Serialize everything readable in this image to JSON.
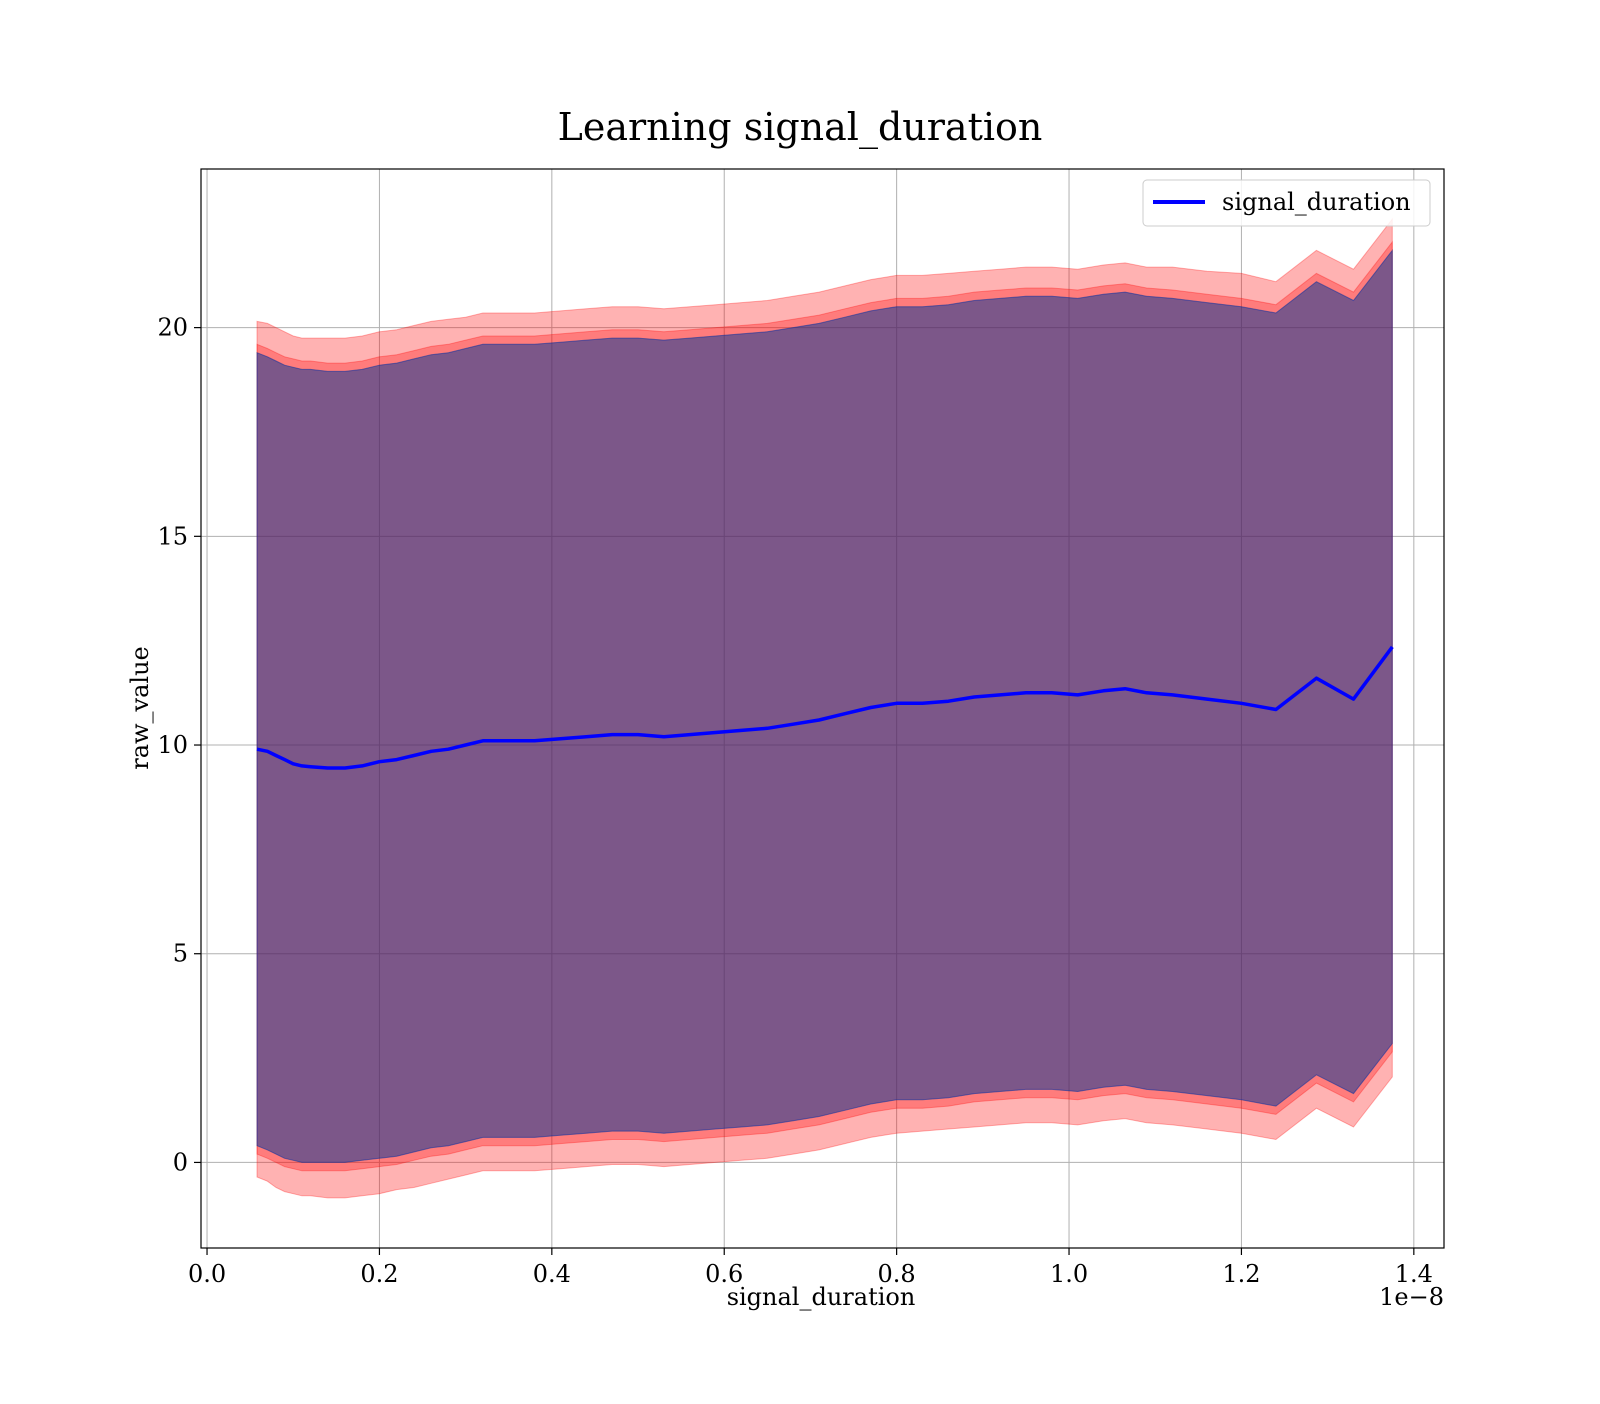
{
  "chart_data": {
    "type": "line",
    "title": "Learning signal_duration",
    "xlabel": "signal_duration",
    "ylabel": "raw_value",
    "x_offset_text": "1e−8",
    "xlim": [
      -0.007,
      1.435
    ],
    "ylim": [
      -2.05,
      23.8
    ],
    "grid": true,
    "legend": {
      "position": "top-right",
      "entries": [
        "signal_duration"
      ]
    },
    "x_ticks": [
      0.0,
      0.2,
      0.4,
      0.6,
      0.8,
      1.0,
      1.2,
      1.4
    ],
    "x_tick_labels": [
      "0.0",
      "0.2",
      "0.4",
      "0.6",
      "0.8",
      "1.0",
      "1.2",
      "1.4"
    ],
    "y_ticks": [
      0,
      5,
      10,
      15,
      20
    ],
    "y_tick_labels": [
      "0",
      "5",
      "10",
      "15",
      "20"
    ],
    "x": [
      0.058,
      0.07,
      0.08,
      0.09,
      0.1,
      0.11,
      0.12,
      0.14,
      0.16,
      0.18,
      0.2,
      0.22,
      0.24,
      0.26,
      0.28,
      0.3,
      0.32,
      0.35,
      0.38,
      0.41,
      0.44,
      0.47,
      0.5,
      0.53,
      0.56,
      0.59,
      0.62,
      0.65,
      0.68,
      0.71,
      0.74,
      0.77,
      0.8,
      0.83,
      0.86,
      0.89,
      0.92,
      0.95,
      0.98,
      1.01,
      1.04,
      1.065,
      1.09,
      1.12,
      1.16,
      1.2,
      1.24,
      1.287,
      1.33,
      1.375
    ],
    "series": [
      {
        "name": "signal_duration",
        "color": "#0000ff",
        "values": [
          9.9,
          9.85,
          9.75,
          9.65,
          9.55,
          9.5,
          9.48,
          9.45,
          9.45,
          9.5,
          9.6,
          9.65,
          9.75,
          9.85,
          9.9,
          10.0,
          10.1,
          10.1,
          10.1,
          10.15,
          10.2,
          10.25,
          10.25,
          10.2,
          10.25,
          10.3,
          10.35,
          10.4,
          10.5,
          10.6,
          10.75,
          10.9,
          11.0,
          11.0,
          11.05,
          11.15,
          11.2,
          11.25,
          11.25,
          11.2,
          11.3,
          11.35,
          11.25,
          11.2,
          11.1,
          11.0,
          10.85,
          11.6,
          11.1,
          12.35
        ]
      }
    ],
    "bands": [
      {
        "color": "#ff0000",
        "opacity": 0.3,
        "lower": [
          -0.35,
          -0.45,
          -0.6,
          -0.7,
          -0.75,
          -0.8,
          -0.8,
          -0.85,
          -0.85,
          -0.8,
          -0.75,
          -0.65,
          -0.6,
          -0.5,
          -0.4,
          -0.3,
          -0.2,
          -0.2,
          -0.2,
          -0.15,
          -0.1,
          -0.05,
          -0.05,
          -0.1,
          -0.05,
          0.0,
          0.05,
          0.1,
          0.2,
          0.3,
          0.45,
          0.6,
          0.7,
          0.75,
          0.8,
          0.85,
          0.9,
          0.95,
          0.95,
          0.9,
          1.0,
          1.05,
          0.95,
          0.9,
          0.8,
          0.7,
          0.55,
          1.3,
          0.85,
          2.05
        ],
        "upper": [
          20.15,
          20.1,
          20.0,
          19.9,
          19.8,
          19.75,
          19.75,
          19.75,
          19.75,
          19.8,
          19.9,
          19.95,
          20.05,
          20.15,
          20.2,
          20.25,
          20.35,
          20.35,
          20.35,
          20.4,
          20.45,
          20.5,
          20.5,
          20.45,
          20.5,
          20.55,
          20.6,
          20.65,
          20.75,
          20.85,
          21.0,
          21.15,
          21.25,
          21.25,
          21.3,
          21.35,
          21.4,
          21.45,
          21.45,
          21.4,
          21.5,
          21.55,
          21.45,
          21.45,
          21.35,
          21.3,
          21.1,
          21.85,
          21.4,
          22.6
        ]
      },
      {
        "color": "#ff0000",
        "opacity": 0.3,
        "lower": [
          0.2,
          0.1,
          0.0,
          -0.1,
          -0.15,
          -0.2,
          -0.2,
          -0.2,
          -0.2,
          -0.15,
          -0.1,
          -0.05,
          0.05,
          0.15,
          0.2,
          0.3,
          0.4,
          0.4,
          0.4,
          0.45,
          0.5,
          0.55,
          0.55,
          0.5,
          0.55,
          0.6,
          0.65,
          0.7,
          0.8,
          0.9,
          1.05,
          1.2,
          1.3,
          1.3,
          1.35,
          1.45,
          1.5,
          1.55,
          1.55,
          1.5,
          1.6,
          1.65,
          1.55,
          1.5,
          1.4,
          1.3,
          1.15,
          1.9,
          1.45,
          2.65
        ],
        "upper": [
          19.6,
          19.5,
          19.4,
          19.3,
          19.25,
          19.2,
          19.2,
          19.15,
          19.15,
          19.2,
          19.3,
          19.35,
          19.45,
          19.55,
          19.6,
          19.7,
          19.8,
          19.8,
          19.8,
          19.85,
          19.9,
          19.95,
          19.95,
          19.9,
          19.95,
          20.0,
          20.05,
          20.1,
          20.2,
          20.3,
          20.45,
          20.6,
          20.7,
          20.7,
          20.75,
          20.85,
          20.9,
          20.95,
          20.95,
          20.9,
          21.0,
          21.05,
          20.95,
          20.9,
          20.8,
          20.7,
          20.55,
          21.3,
          20.85,
          22.05
        ]
      },
      {
        "color": "#008000",
        "opacity": 0.3,
        "lower": [
          0.4,
          0.3,
          0.2,
          0.1,
          0.05,
          0.0,
          0.0,
          0.0,
          0.0,
          0.05,
          0.1,
          0.15,
          0.25,
          0.35,
          0.4,
          0.5,
          0.6,
          0.6,
          0.6,
          0.65,
          0.7,
          0.75,
          0.75,
          0.7,
          0.75,
          0.8,
          0.85,
          0.9,
          1.0,
          1.1,
          1.25,
          1.4,
          1.5,
          1.5,
          1.55,
          1.65,
          1.7,
          1.75,
          1.75,
          1.7,
          1.8,
          1.85,
          1.75,
          1.7,
          1.6,
          1.5,
          1.35,
          2.1,
          1.65,
          2.85
        ],
        "upper": [
          19.4,
          19.3,
          19.2,
          19.1,
          19.05,
          19.0,
          19.0,
          18.95,
          18.95,
          19.0,
          19.1,
          19.15,
          19.25,
          19.35,
          19.4,
          19.5,
          19.6,
          19.6,
          19.6,
          19.65,
          19.7,
          19.75,
          19.75,
          19.7,
          19.75,
          19.8,
          19.85,
          19.9,
          20.0,
          20.1,
          20.25,
          20.4,
          20.5,
          20.5,
          20.55,
          20.65,
          20.7,
          20.75,
          20.75,
          20.7,
          20.8,
          20.85,
          20.75,
          20.7,
          20.6,
          20.5,
          20.35,
          21.1,
          20.65,
          21.85
        ]
      },
      {
        "color": "#0000ff",
        "opacity": 0.3,
        "lower": [
          0.4,
          0.3,
          0.2,
          0.1,
          0.05,
          0.0,
          0.0,
          0.0,
          0.0,
          0.05,
          0.1,
          0.15,
          0.25,
          0.35,
          0.4,
          0.5,
          0.6,
          0.6,
          0.6,
          0.65,
          0.7,
          0.75,
          0.75,
          0.7,
          0.75,
          0.8,
          0.85,
          0.9,
          1.0,
          1.1,
          1.25,
          1.4,
          1.5,
          1.5,
          1.55,
          1.65,
          1.7,
          1.75,
          1.75,
          1.7,
          1.8,
          1.85,
          1.75,
          1.7,
          1.6,
          1.5,
          1.35,
          2.1,
          1.65,
          2.85
        ],
        "upper": [
          19.4,
          19.3,
          19.2,
          19.1,
          19.05,
          19.0,
          19.0,
          18.95,
          18.95,
          19.0,
          19.1,
          19.15,
          19.25,
          19.35,
          19.4,
          19.5,
          19.6,
          19.6,
          19.6,
          19.65,
          19.7,
          19.75,
          19.75,
          19.7,
          19.75,
          19.8,
          19.85,
          19.9,
          20.0,
          20.1,
          20.25,
          20.4,
          20.5,
          20.5,
          20.55,
          20.65,
          20.7,
          20.75,
          20.75,
          20.7,
          20.8,
          20.85,
          20.75,
          20.7,
          20.6,
          20.5,
          20.35,
          21.1,
          20.65,
          21.85
        ]
      }
    ]
  }
}
